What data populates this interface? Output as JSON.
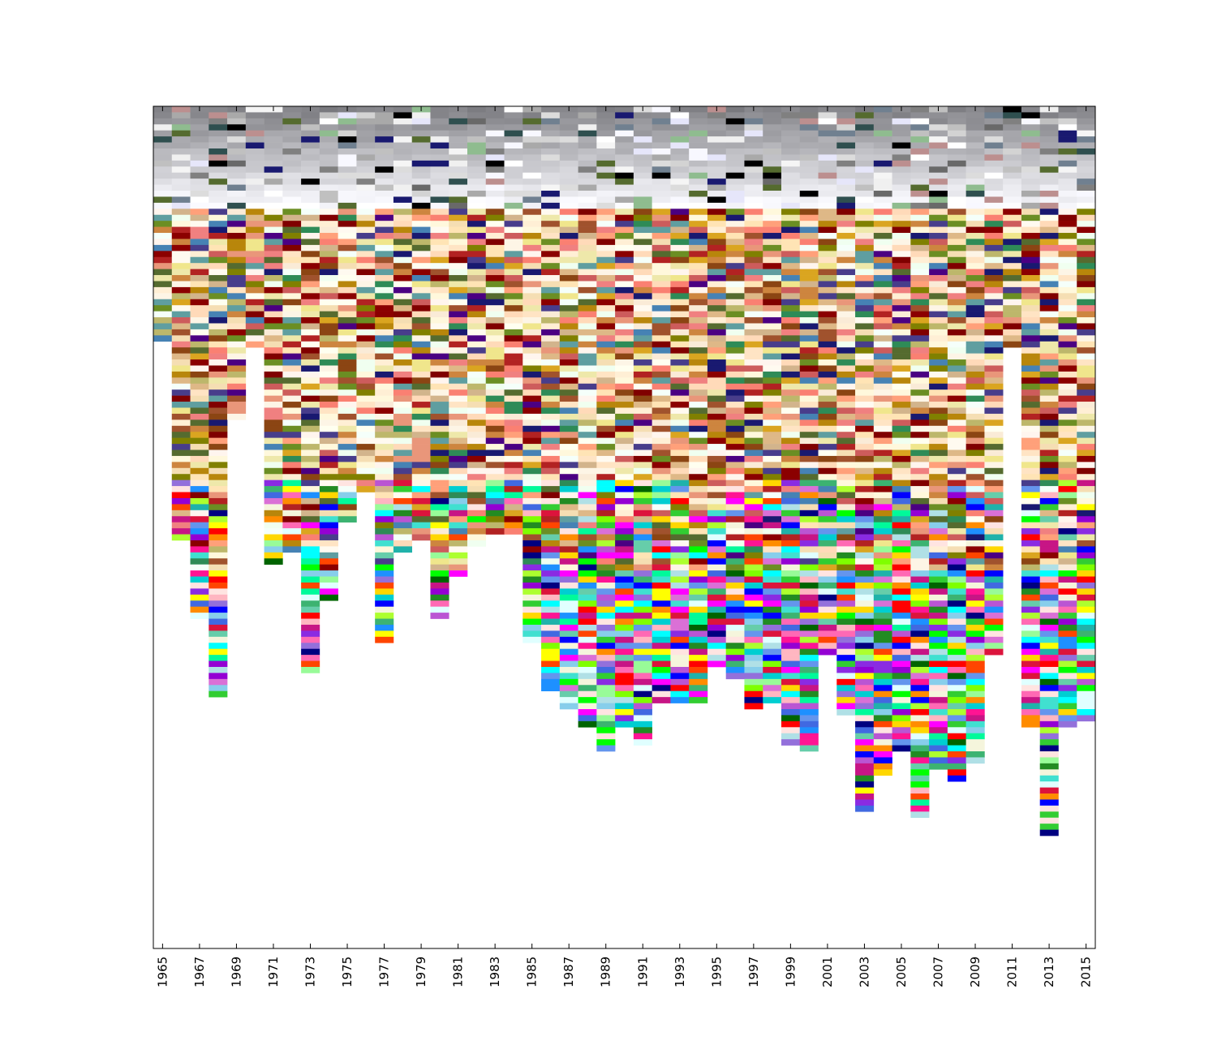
{
  "chart_data": {
    "type": "heatmap",
    "description_of_encoding": "Each column is one year; each row is a stacked color swatch. Columns end at different depths.",
    "categories": [
      "1965",
      "1966",
      "1967",
      "1968",
      "1969",
      "1970",
      "1971",
      "1972",
      "1973",
      "1974",
      "1975",
      "1976",
      "1977",
      "1978",
      "1979",
      "1980",
      "1981",
      "1982",
      "1983",
      "1984",
      "1985",
      "1986",
      "1987",
      "1988",
      "1989",
      "1990",
      "1991",
      "1992",
      "1993",
      "1994",
      "1995",
      "1996",
      "1997",
      "1998",
      "1999",
      "2000",
      "2001",
      "2002",
      "2003",
      "2004",
      "2005",
      "2006",
      "2007",
      "2008",
      "2009",
      "2010",
      "2011",
      "2012",
      "2013",
      "2014",
      "2015"
    ],
    "x_tick_labels": [
      "1965",
      "1967",
      "1969",
      "1971",
      "1973",
      "1975",
      "1977",
      "1979",
      "1981",
      "1983",
      "1985",
      "1987",
      "1989",
      "1991",
      "1993",
      "1995",
      "1997",
      "1999",
      "2001",
      "2003",
      "2005",
      "2007",
      "2009",
      "2011",
      "2013",
      "2015"
    ],
    "column_swatch_counts": [
      54,
      54,
      54,
      54,
      54,
      54,
      54,
      54,
      54,
      54,
      54,
      54,
      54,
      54,
      54,
      54,
      54,
      54,
      54,
      54,
      54,
      54,
      54,
      54,
      54,
      54,
      54,
      54,
      54,
      54,
      54,
      54,
      54,
      54,
      54,
      54,
      54,
      54,
      54,
      54,
      54,
      54,
      54,
      54,
      54,
      54,
      54,
      54,
      54,
      54,
      54
    ],
    "column_lengths": [
      22,
      55,
      68,
      81,
      35,
      23,
      59,
      57,
      77,
      65,
      52,
      47,
      72,
      57,
      55,
      68,
      61,
      56,
      54,
      54,
      72,
      80,
      83,
      86,
      90,
      86,
      89,
      82,
      82,
      82,
      76,
      78,
      83,
      82,
      89,
      90,
      74,
      84,
      100,
      94,
      90,
      101,
      93,
      95,
      92,
      74,
      23,
      86,
      104,
      86,
      85
    ],
    "palettes": {
      "gray_top": [
        "#808080",
        "#a9a9a9",
        "#c0c0c0",
        "#d3d3d3",
        "#dcdcdc",
        "#f5f5f5",
        "#ffffff",
        "#000000",
        "#2f4f4f",
        "#191970",
        "#708090",
        "#e6e6fa",
        "#f8f8ff",
        "#696969",
        "#556b2f",
        "#bc8f8f",
        "#8fbc8f",
        "#f0f0f0"
      ],
      "warm_mid": [
        "#ffe4c4",
        "#ffdab9",
        "#faebd7",
        "#fff5ee",
        "#fdf5e6",
        "#ffefd5",
        "#ffe4b5",
        "#f5deb3",
        "#deb887",
        "#d2b48c",
        "#cd853f",
        "#8b4513",
        "#a0522d",
        "#b22222",
        "#8b0000",
        "#556b2f",
        "#808000",
        "#6b8e23",
        "#2e8b57",
        "#cd5c5c",
        "#f08080",
        "#fa8072",
        "#e9967a",
        "#ffa07a",
        "#bdb76b",
        "#eee8aa",
        "#f0e68c",
        "#daa520",
        "#b8860b",
        "#4682b4",
        "#5f9ea0",
        "#191970",
        "#483d8b",
        "#4b0082",
        "#800000",
        "#fffaf0",
        "#f5fffa",
        "#f0fff0",
        "#fffff0",
        "#fff8dc"
      ],
      "vivid_bottom": [
        "#ff0000",
        "#00ff00",
        "#0000ff",
        "#ffff00",
        "#00ffff",
        "#ff00ff",
        "#ff1493",
        "#ff4500",
        "#ffd700",
        "#7fff00",
        "#00fa9a",
        "#1e90ff",
        "#9400d3",
        "#c71585",
        "#00ced1",
        "#32cd32",
        "#ff8c00",
        "#dc143c",
        "#8a2be2",
        "#000080",
        "#006400",
        "#20b2aa",
        "#ff69b4",
        "#adff2f",
        "#40e0d0",
        "#da70d6",
        "#98fb98",
        "#87ceeb",
        "#ffb6c1",
        "#e0ffff",
        "#228b22",
        "#3cb371",
        "#6495ed",
        "#ba55d3",
        "#9370db",
        "#66cdaa",
        "#ffe4e1",
        "#b0e0e6",
        "#f5f5dc",
        "#4169e1"
      ]
    },
    "xlabel": "",
    "ylabel": "",
    "title": "",
    "grid": false
  }
}
